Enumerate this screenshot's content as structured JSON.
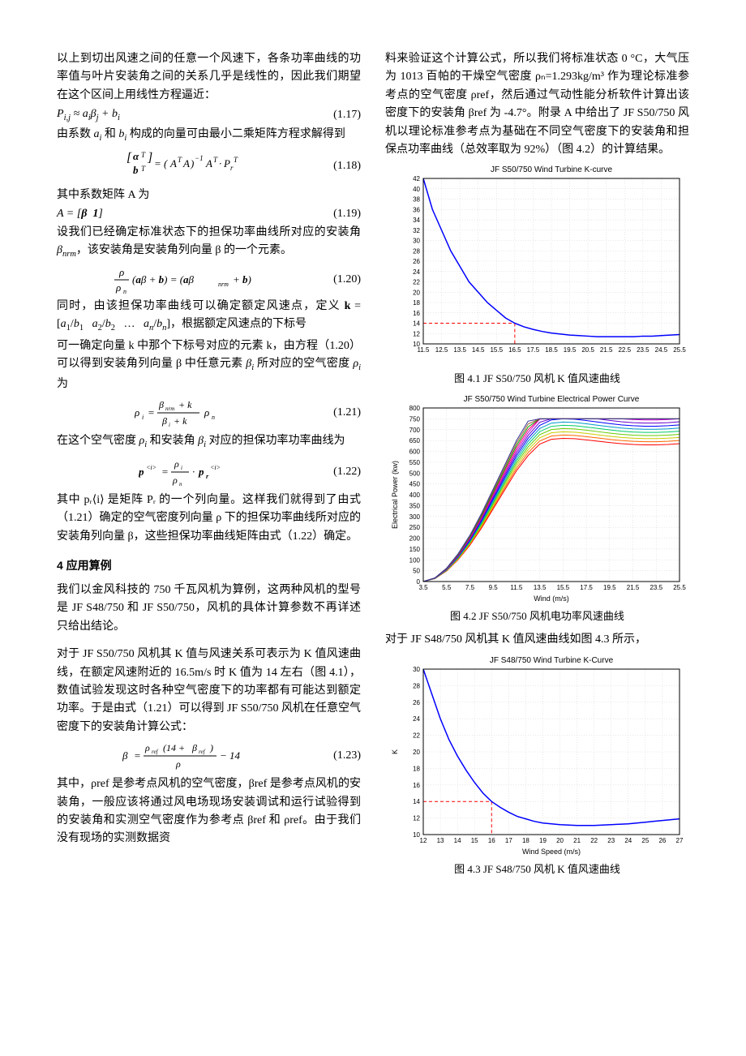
{
  "leftCol": {
    "p1": "以上到切出风速之间的任意一个风速下，各条功率曲线的功率值与叶片安装角之间的关系几乎是线性的，因此我们期望在这个区间上用线性方程逼近：",
    "eq17": "Pᵢ,ⱼ ≈ aᵢβⱼ + bᵢ",
    "eq17num": "(1.17)",
    "p2a": "由系数 ",
    "p2b": " 和 ",
    "p2c": " 构成的向量可由最小二乘矩阵方程求解得到",
    "eq18": "[αᵀ; bᵀ] = (AᵀA)⁻¹ Aᵀ · Pᵣᵀ",
    "eq18num": "(1.18)",
    "p3": "其中系数矩阵 A 为",
    "eq19": "A = [β  1]",
    "eq19num": "(1.19)",
    "p4a": "设我们已经确定标准状态下的担保功率曲线所对应的安装角 ",
    "p4b": "，该安装角是安装角列向量 β 的一个元素。",
    "eq20": "(ρ/ρₙ)(aβ + b) = (aβₙᵣₘ + b)",
    "eq20num": "(1.20)",
    "p5a": "同时，由该担保功率曲线可以确定额定风速点，定义 ",
    "p5b": "，根据额定风速点的下标号",
    "p6a": "可一确定向量 k 中那个下标号对应的元素 k，由方程（1.20）可以得到安装角列向量 β 中任意元素 ",
    "p6b": " 所对应的空气密度 ",
    "p6c": " 为",
    "eq21": "ρᵢ = ((βₙᵣₘ + k)/(βᵢ + k)) ρₙ",
    "eq21num": "(1.21)",
    "p7a": "在这个空气密度 ",
    "p7b": " 和安装角 ",
    "p7c": " 对应的担保功率功率曲线为",
    "eq22": "p⟨i⟩ = (ρᵢ/ρₙ) · pᵣ⟨i⟩",
    "eq22num": "(1.22)",
    "p8": "其中 pᵣ⟨i⟩ 是矩阵 Pᵣ 的一个列向量。这样我们就得到了由式（1.21）确定的空气密度列向量 ρ 下的担保功率曲线所对应的安装角列向量 β，这些担保功率曲线矩阵由式（1.22）确定。",
    "secHead": "4    应用算例",
    "p9": "我们以金风科技的 750 千瓦风机为算例，这两种风机的型号是 JF S48/750 和 JF S50/750，风机的具体计算参数不再详述只给出结论。",
    "p10": "对于 JF S50/750 风机其 K 值与风速关系可表示为 K 值风速曲线，在额定风速附近的 16.5m/s 时 K 值为 14 左右（图 4.1），数值试验发现这时各种空气密度下的功率都有可能达到额定功率。于是由式（1.21）可以得到 JF S50/750 风机在任意空气密度下的安装角计算公式：",
    "eq23": "β = (ρref(14 + βref))/ρ − 14",
    "eq23num": "(1.23)",
    "p11": "其中，ρref 是参考点风机的空气密度，βref 是参考点风机的安装角，一般应该将通过风电场现场安装调试和运行试验得到的安装角和实测空气密度作为参考点 βref 和 ρref。由于我们没有现场的实测数据资"
  },
  "rightCol": {
    "p1": "料来验证这个计算公式，所以我们将标准状态 0 °C，大气压为 1013 百帕的干燥空气密度 ρₙ=1.293kg/m³ 作为理论标准参考点的空气密度 ρref，然后通过气动性能分析软件计算出该密度下的安装角 βref 为 -4.7°。附录 A 中给出了 JF S50/750 风机以理论标准参考点为基础在不同空气密度下的安装角和担保点功率曲线（总效率取为 92%）（图 4.2）的计算结果。",
    "cap41": "图 4.1    JF S50/750 风机 K 值风速曲线",
    "cap42": "图 4.2    JF S50/750 风机电功率风速曲线",
    "p2": "对于 JF S48/750 风机其 K 值风速曲线如图 4.3 所示，",
    "cap43": "图 4.3    JF S48/750 风机 K 值风速曲线"
  },
  "chart41": {
    "title": "JF S50/750 Wind Turbine K-curve",
    "xlabel": "",
    "ylabel": "",
    "xlim": [
      11.5,
      25.5
    ],
    "ylim": [
      10,
      42
    ],
    "xticks": [
      11.5,
      12.5,
      13.5,
      14.5,
      15.5,
      16.5,
      17.5,
      18.5,
      19.5,
      20.5,
      21.5,
      22.5,
      23.5,
      24.5,
      25.5
    ],
    "yticks": [
      10,
      12,
      14,
      16,
      18,
      20,
      22,
      24,
      26,
      28,
      30,
      32,
      34,
      36,
      38,
      40,
      42
    ],
    "line_color": "#0000ff",
    "grid_color": "#d0d0d0",
    "ref_color": "#ff0000",
    "background": "#ffffff",
    "data": [
      [
        11.5,
        42
      ],
      [
        12.0,
        36
      ],
      [
        12.5,
        32
      ],
      [
        13.0,
        28
      ],
      [
        13.5,
        25
      ],
      [
        14.0,
        22
      ],
      [
        14.5,
        20
      ],
      [
        15.0,
        18
      ],
      [
        15.5,
        16.5
      ],
      [
        16.0,
        15
      ],
      [
        16.5,
        14
      ],
      [
        17.0,
        13.3
      ],
      [
        17.5,
        12.8
      ],
      [
        18.0,
        12.4
      ],
      [
        18.5,
        12.1
      ],
      [
        19.0,
        11.9
      ],
      [
        19.5,
        11.7
      ],
      [
        20.0,
        11.6
      ],
      [
        20.5,
        11.5
      ],
      [
        21.0,
        11.4
      ],
      [
        21.5,
        11.4
      ],
      [
        22.0,
        11.4
      ],
      [
        22.5,
        11.4
      ],
      [
        23.0,
        11.4
      ],
      [
        23.5,
        11.5
      ],
      [
        24.0,
        11.5
      ],
      [
        24.5,
        11.6
      ],
      [
        25.0,
        11.7
      ],
      [
        25.5,
        11.8
      ]
    ],
    "ref_x": 16.5,
    "ref_y": 14
  },
  "chart42": {
    "title": "JF S50/750 Wind Turbine Electrical Power Curve",
    "xlabel": "Wind (m/s)",
    "ylabel": "Electrical Power (kw)",
    "xlim": [
      3.5,
      25.5
    ],
    "ylim": [
      0,
      800
    ],
    "xticks": [
      3.5,
      5.5,
      7.5,
      9.5,
      11.5,
      13.5,
      15.5,
      17.5,
      19.5,
      21.5,
      23.5,
      25.5
    ],
    "yticks": [
      0,
      50,
      100,
      150,
      200,
      250,
      300,
      350,
      400,
      450,
      500,
      550,
      600,
      650,
      700,
      750,
      800
    ],
    "grid_color": "#d0d0d0",
    "background": "#ffffff",
    "line_colors": [
      "#ff0000",
      "#ff6600",
      "#cccc00",
      "#66cc00",
      "#00cc66",
      "#0099cc",
      "#0000ff",
      "#6600cc",
      "#cc00cc",
      "#ff0066",
      "#009900",
      "#996633",
      "#333399"
    ],
    "base": [
      [
        3.5,
        0
      ],
      [
        4.5,
        15
      ],
      [
        5.5,
        55
      ],
      [
        6.5,
        115
      ],
      [
        7.5,
        190
      ],
      [
        8.5,
        280
      ],
      [
        9.5,
        380
      ],
      [
        10.5,
        480
      ],
      [
        11.5,
        580
      ],
      [
        12.5,
        660
      ],
      [
        13.5,
        720
      ],
      [
        14.5,
        745
      ],
      [
        15.5,
        750
      ],
      [
        16.5,
        748
      ],
      [
        17.5,
        742
      ],
      [
        18.5,
        735
      ],
      [
        19.5,
        728
      ],
      [
        20.5,
        722
      ],
      [
        21.5,
        718
      ],
      [
        22.5,
        716
      ],
      [
        23.5,
        716
      ],
      [
        24.5,
        718
      ],
      [
        25.5,
        722
      ]
    ]
  },
  "chart43": {
    "title": "JF S48/750 Wind Turbine K-Curve",
    "xlabel": "Wind Speed (m/s)",
    "ylabel": "K",
    "xlim": [
      12,
      27
    ],
    "ylim": [
      10,
      30
    ],
    "xticks": [
      12,
      13,
      14,
      15,
      16,
      17,
      18,
      19,
      20,
      21,
      22,
      23,
      24,
      25,
      26,
      27
    ],
    "yticks": [
      10,
      12,
      14,
      16,
      18,
      20,
      22,
      24,
      26,
      28,
      30
    ],
    "line_color": "#0000ff",
    "grid_color": "#d0d0d0",
    "ref_color": "#ff0000",
    "background": "#ffffff",
    "data": [
      [
        12,
        30
      ],
      [
        12.5,
        27
      ],
      [
        13,
        24
      ],
      [
        13.5,
        21.5
      ],
      [
        14,
        19.5
      ],
      [
        14.5,
        17.8
      ],
      [
        15,
        16.3
      ],
      [
        15.5,
        15
      ],
      [
        16,
        14
      ],
      [
        16.5,
        13.3
      ],
      [
        17,
        12.7
      ],
      [
        17.5,
        12.2
      ],
      [
        18,
        11.9
      ],
      [
        18.5,
        11.6
      ],
      [
        19,
        11.4
      ],
      [
        19.5,
        11.3
      ],
      [
        20,
        11.2
      ],
      [
        20.5,
        11.15
      ],
      [
        21,
        11.1
      ],
      [
        21.5,
        11.1
      ],
      [
        22,
        11.1
      ],
      [
        22.5,
        11.15
      ],
      [
        23,
        11.2
      ],
      [
        23.5,
        11.25
      ],
      [
        24,
        11.3
      ],
      [
        24.5,
        11.4
      ],
      [
        25,
        11.5
      ],
      [
        25.5,
        11.6
      ],
      [
        26,
        11.7
      ],
      [
        26.5,
        11.8
      ],
      [
        27,
        11.9
      ]
    ],
    "ref_x": 16,
    "ref_y": 14
  }
}
